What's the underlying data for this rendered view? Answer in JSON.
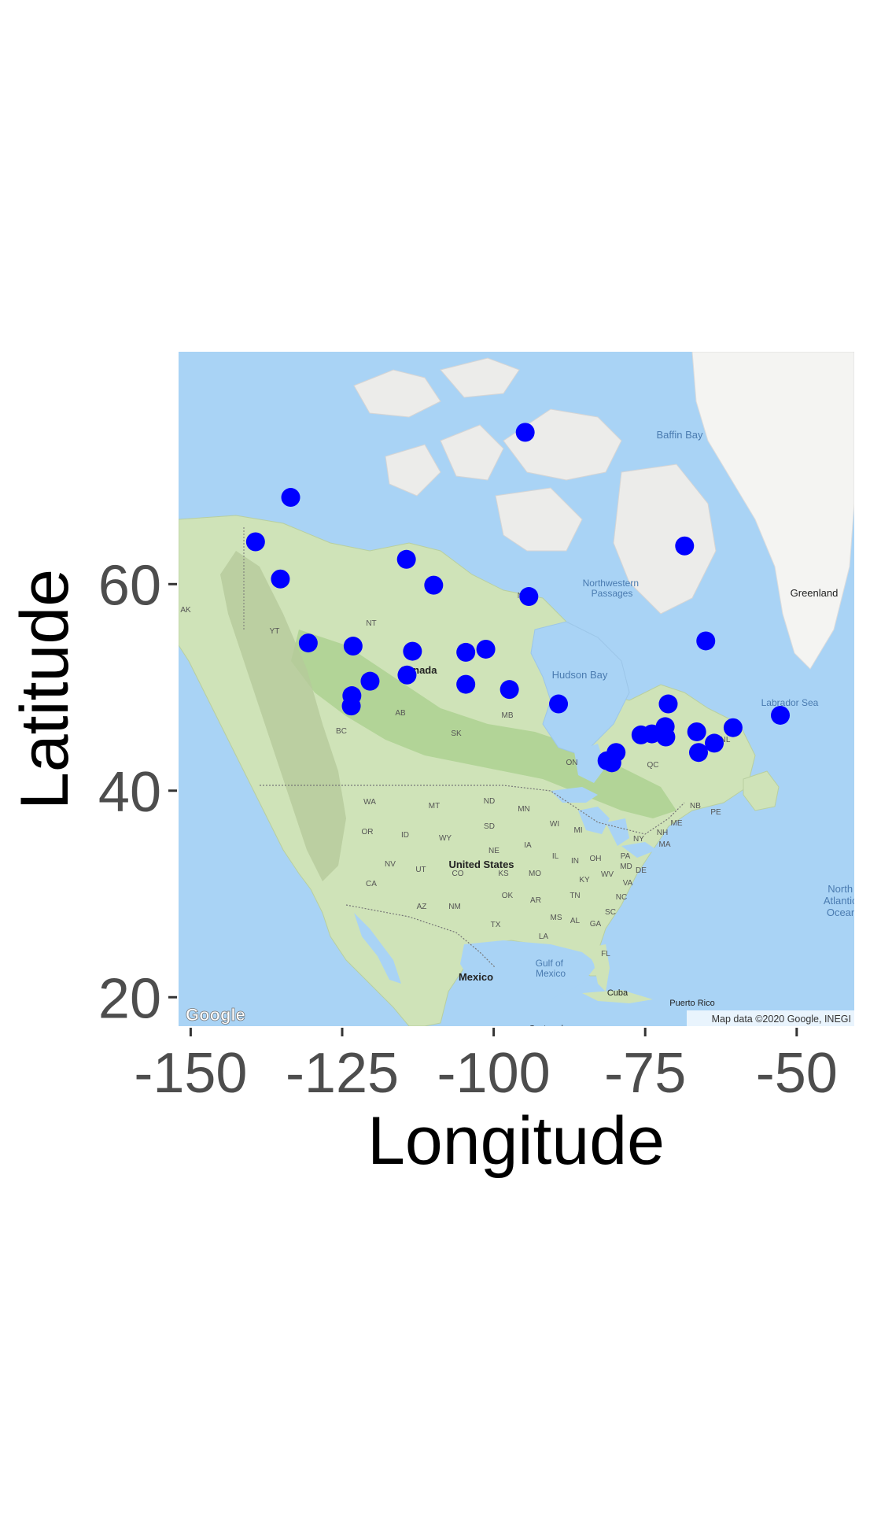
{
  "chart_data": {
    "type": "scatter",
    "title": "",
    "xlabel": "Longitude",
    "ylabel": "Latitude",
    "xlim": [
      -152,
      -40.5
    ],
    "ylim": [
      17.2,
      82.5
    ],
    "x_ticks": [
      -150,
      -125,
      -100,
      -75,
      -50
    ],
    "y_ticks": [
      20,
      40,
      60
    ],
    "x_tick_labels": [
      "-150",
      "-125",
      "-100",
      "-75",
      "-50"
    ],
    "y_tick_labels": [
      "20",
      "40",
      "60"
    ],
    "grid": false,
    "legend": "none",
    "point_color": "#0000ff",
    "background": "Google map basemap",
    "points": [
      {
        "x": -94.8,
        "y": 74.7
      },
      {
        "x": -133.5,
        "y": 68.4
      },
      {
        "x": -139.3,
        "y": 64.1
      },
      {
        "x": -135.2,
        "y": 60.5
      },
      {
        "x": -114.4,
        "y": 62.4
      },
      {
        "x": -109.9,
        "y": 59.9
      },
      {
        "x": -94.2,
        "y": 58.8
      },
      {
        "x": -68.5,
        "y": 63.7
      },
      {
        "x": -65.0,
        "y": 54.5
      },
      {
        "x": -130.6,
        "y": 54.3
      },
      {
        "x": -123.2,
        "y": 54.0
      },
      {
        "x": -113.4,
        "y": 53.5
      },
      {
        "x": -104.6,
        "y": 53.4
      },
      {
        "x": -101.3,
        "y": 53.7
      },
      {
        "x": -114.3,
        "y": 51.2
      },
      {
        "x": -120.4,
        "y": 50.6
      },
      {
        "x": -104.6,
        "y": 50.3
      },
      {
        "x": -123.4,
        "y": 49.2
      },
      {
        "x": -123.5,
        "y": 48.2
      },
      {
        "x": -97.4,
        "y": 49.8
      },
      {
        "x": -89.3,
        "y": 48.4
      },
      {
        "x": -71.2,
        "y": 48.4
      },
      {
        "x": -71.7,
        "y": 46.2
      },
      {
        "x": -73.9,
        "y": 45.5
      },
      {
        "x": -75.7,
        "y": 45.4
      },
      {
        "x": -71.6,
        "y": 45.2
      },
      {
        "x": -66.5,
        "y": 45.7
      },
      {
        "x": -63.6,
        "y": 44.6
      },
      {
        "x": -60.5,
        "y": 46.1
      },
      {
        "x": -52.7,
        "y": 47.3
      },
      {
        "x": -66.2,
        "y": 43.7
      },
      {
        "x": -79.8,
        "y": 43.7
      },
      {
        "x": -81.3,
        "y": 42.9
      },
      {
        "x": -80.5,
        "y": 42.7
      }
    ]
  },
  "map": {
    "labels": {
      "baffin_bay": "Baffin Bay",
      "northwestern_passages": "Northwestern\nPassages",
      "greenland": "Greenland",
      "hudson_bay": "Hudson Bay",
      "labrador_sea": "Labrador Sea",
      "canada": "Canada",
      "united_states": "United States",
      "mexico": "Mexico",
      "gulf_of_mexico": "Gulf of\nMexico",
      "cuba": "Cuba",
      "puerto_rico": "Puerto Rico",
      "guatemala": "Guatemala",
      "north_atlantic": "North\nAtlantic\nOcean",
      "nu": "NU",
      "nt": "NT",
      "yt": "YT",
      "ak": "AK",
      "bc": "BC",
      "ab": "AB",
      "sk": "SK",
      "mb": "MB",
      "on": "ON",
      "qc": "QC",
      "nl": "NL",
      "nb": "NB",
      "pe": "PE",
      "me": "ME",
      "nh": "NH",
      "ma": "MA",
      "ny": "NY",
      "pa": "PA",
      "md": "MD",
      "de": "DE",
      "wv": "WV",
      "va": "VA",
      "nc": "NC",
      "sc": "SC",
      "ga": "GA",
      "fl": "FL",
      "al": "AL",
      "ms": "MS",
      "la": "LA",
      "tn": "TN",
      "ky": "KY",
      "oh": "OH",
      "in": "IN",
      "il": "IL",
      "mi": "MI",
      "wi": "WI",
      "mn": "MN",
      "ia": "IA",
      "mo": "MO",
      "ar": "AR",
      "ok": "OK",
      "tx": "TX",
      "ks": "KS",
      "ne": "NE",
      "sd": "SD",
      "nd": "ND",
      "mt": "MT",
      "wy": "WY",
      "co": "CO",
      "nm": "NM",
      "az": "AZ",
      "ut": "UT",
      "nv": "NV",
      "ca": "CA",
      "or": "OR",
      "wa": "WA",
      "id": "ID"
    },
    "attribution": "Map data ©2020 Google, INEGI",
    "logo": "Google"
  }
}
